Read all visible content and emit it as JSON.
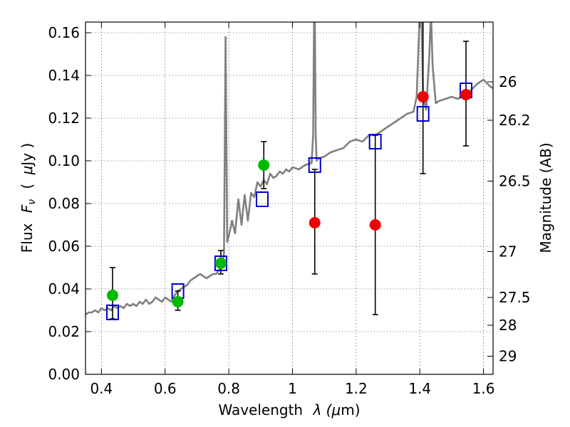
{
  "chart_data": {
    "type": "scatter",
    "xlabel_parts": [
      "Wavelength",
      "λ (",
      "μ",
      "m)"
    ],
    "ylabel_parts": [
      "Flux",
      "F",
      "ν",
      "(",
      "μ",
      "Jy )"
    ],
    "y2label": "Magnitude (AB)",
    "xlim": [
      0.35,
      1.63
    ],
    "ylim": [
      0.0,
      0.165
    ],
    "grid": true,
    "x_ticks": [
      {
        "value": 0.4,
        "label": "0.4"
      },
      {
        "value": 0.6,
        "label": "0.6"
      },
      {
        "value": 0.8,
        "label": "0.8"
      },
      {
        "value": 1.0,
        "label": "1"
      },
      {
        "value": 1.2,
        "label": "1.2"
      },
      {
        "value": 1.4,
        "label": "1.4"
      },
      {
        "value": 1.6,
        "label": "1.6"
      }
    ],
    "y_ticks": [
      {
        "value": 0.0,
        "label": "0.00"
      },
      {
        "value": 0.02,
        "label": "0.02"
      },
      {
        "value": 0.04,
        "label": "0.04"
      },
      {
        "value": 0.06,
        "label": "0.06"
      },
      {
        "value": 0.08,
        "label": "0.08"
      },
      {
        "value": 0.1,
        "label": "0.10"
      },
      {
        "value": 0.12,
        "label": "0.12"
      },
      {
        "value": 0.14,
        "label": "0.14"
      },
      {
        "value": 0.16,
        "label": "0.16"
      }
    ],
    "y2_ticks": [
      {
        "flux": 0.137,
        "label": "26"
      },
      {
        "flux": 0.119,
        "label": "26.2"
      },
      {
        "flux": 0.0905,
        "label": "26.5"
      },
      {
        "flux": 0.0575,
        "label": "27"
      },
      {
        "flux": 0.036,
        "label": "27.5"
      },
      {
        "flux": 0.023,
        "label": "28"
      },
      {
        "flux": 0.0085,
        "label": "29"
      }
    ],
    "series": [
      {
        "kind": "sed-model",
        "color": "#808080",
        "x": [
          0.35,
          0.36,
          0.37,
          0.38,
          0.39,
          0.4,
          0.41,
          0.42,
          0.43,
          0.44,
          0.45,
          0.46,
          0.47,
          0.48,
          0.49,
          0.5,
          0.51,
          0.52,
          0.53,
          0.54,
          0.55,
          0.56,
          0.57,
          0.58,
          0.59,
          0.6,
          0.61,
          0.62,
          0.63,
          0.64,
          0.65,
          0.66,
          0.67,
          0.68,
          0.69,
          0.7,
          0.71,
          0.72,
          0.73,
          0.74,
          0.75,
          0.76,
          0.77,
          0.78,
          0.785,
          0.79,
          0.795,
          0.8,
          0.805,
          0.81,
          0.82,
          0.83,
          0.84,
          0.85,
          0.86,
          0.87,
          0.88,
          0.89,
          0.9,
          0.91,
          0.92,
          0.93,
          0.94,
          0.95,
          0.96,
          0.97,
          0.98,
          0.99,
          1.0,
          1.02,
          1.04,
          1.06,
          1.065,
          1.068,
          1.07,
          1.073,
          1.076,
          1.08,
          1.1,
          1.12,
          1.14,
          1.16,
          1.18,
          1.2,
          1.22,
          1.24,
          1.26,
          1.28,
          1.3,
          1.32,
          1.34,
          1.36,
          1.38,
          1.39,
          1.4,
          1.405,
          1.41,
          1.42,
          1.43,
          1.435,
          1.44,
          1.45,
          1.46,
          1.48,
          1.5,
          1.52,
          1.54,
          1.56,
          1.58,
          1.6,
          1.62,
          1.63
        ],
        "y": [
          0.028,
          0.029,
          0.029,
          0.03,
          0.029,
          0.031,
          0.03,
          0.031,
          0.03,
          0.032,
          0.031,
          0.032,
          0.031,
          0.033,
          0.032,
          0.033,
          0.032,
          0.034,
          0.033,
          0.035,
          0.033,
          0.034,
          0.036,
          0.035,
          0.034,
          0.036,
          0.035,
          0.034,
          0.037,
          0.039,
          0.04,
          0.041,
          0.042,
          0.044,
          0.045,
          0.046,
          0.047,
          0.046,
          0.045,
          0.046,
          0.047,
          0.047,
          0.049,
          0.05,
          0.057,
          0.158,
          0.062,
          0.065,
          0.068,
          0.072,
          0.066,
          0.082,
          0.07,
          0.084,
          0.072,
          0.085,
          0.083,
          0.09,
          0.088,
          0.091,
          0.089,
          0.094,
          0.092,
          0.093,
          0.095,
          0.094,
          0.096,
          0.095,
          0.097,
          0.096,
          0.098,
          0.099,
          0.112,
          0.17,
          0.17,
          0.112,
          0.1,
          0.101,
          0.102,
          0.104,
          0.105,
          0.106,
          0.109,
          0.11,
          0.109,
          0.112,
          0.112,
          0.114,
          0.116,
          0.118,
          0.12,
          0.122,
          0.123,
          0.13,
          0.17,
          0.17,
          0.13,
          0.124,
          0.15,
          0.17,
          0.145,
          0.127,
          0.128,
          0.129,
          0.13,
          0.129,
          0.131,
          0.133,
          0.136,
          0.138,
          0.135,
          0.134
        ]
      },
      {
        "kind": "model-photometry",
        "color": "#0000cc",
        "x": [
          0.435,
          0.64,
          0.775,
          0.905,
          1.07,
          1.26,
          1.41,
          1.545
        ],
        "y": [
          0.029,
          0.039,
          0.052,
          0.082,
          0.098,
          0.109,
          0.122,
          0.133
        ]
      },
      {
        "kind": "observed-optical",
        "color": "#00bb00",
        "x": [
          0.435,
          0.64,
          0.775,
          0.91
        ],
        "y": [
          0.037,
          0.034,
          0.052,
          0.098
        ],
        "yerr_low": [
          0.026,
          0.03,
          0.047,
          0.087
        ],
        "yerr_high": [
          0.05,
          0.039,
          0.058,
          0.109
        ]
      },
      {
        "kind": "observed-nir",
        "color": "#ee0000",
        "x": [
          1.07,
          1.26,
          1.41,
          1.545
        ],
        "y": [
          0.071,
          0.07,
          0.13,
          0.131
        ],
        "yerr_low": [
          0.047,
          0.028,
          0.094,
          0.107
        ],
        "yerr_high": [
          0.096,
          0.112,
          0.17,
          0.156
        ]
      }
    ]
  }
}
